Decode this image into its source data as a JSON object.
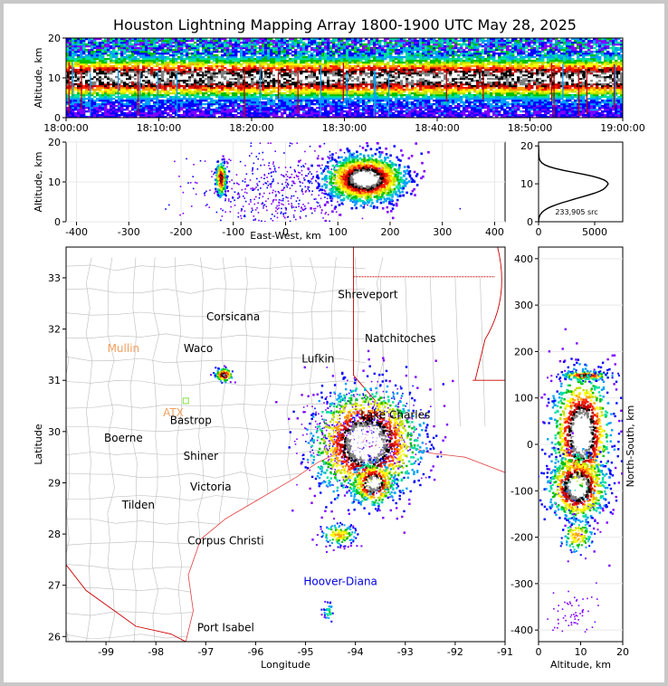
{
  "title": "Houston Lightning Mapping Array 1800-1900 UTC May 28, 2025",
  "source_count_label": "233,905 src",
  "colors": {
    "frame": "#c8c8c8",
    "state_border": "#cc0000",
    "county_border": "#bdbdbd",
    "coast": "#e04040",
    "density_scale": [
      "#7f00ff",
      "#0000ff",
      "#00a0ff",
      "#00e0a0",
      "#00c000",
      "#c0e000",
      "#ffff00",
      "#ffa000",
      "#ff2000",
      "#c00000",
      "#000000",
      "#808080",
      "#ffffff"
    ]
  },
  "chart_data": [
    {
      "id": "time-height",
      "type": "heatmap",
      "ylabel": "Altitude, km",
      "xlim": [
        "18:00:00",
        "19:00:00"
      ],
      "ylim": [
        0,
        20
      ],
      "xticks": [
        "18:00:00",
        "18:10:00",
        "18:20:00",
        "18:30:00",
        "18:40:00",
        "18:50:00",
        "19:00:00"
      ],
      "yticks": [
        0,
        10,
        20
      ],
      "core_altitude_km": 10
    },
    {
      "id": "ew-altitude",
      "type": "heatmap",
      "xlabel": "East-West, km",
      "ylabel": "Altitude, km",
      "xlim": [
        -420,
        420
      ],
      "ylim": [
        0,
        20
      ],
      "xticks": [
        -400,
        -300,
        -200,
        -100,
        0,
        100,
        200,
        300,
        400
      ],
      "yticks": [
        0,
        10,
        20
      ],
      "clusters": [
        {
          "x": -125,
          "y": 11,
          "density": "high"
        },
        {
          "x": 150,
          "y": 11,
          "density": "very high"
        }
      ]
    },
    {
      "id": "altitude-histogram",
      "type": "line",
      "xlim": [
        0,
        7500
      ],
      "ylim": [
        0,
        21
      ],
      "xticks": [
        0,
        5000
      ],
      "yticks": [
        0,
        10,
        20
      ],
      "x": [
        0,
        15,
        40,
        90,
        180,
        320,
        520,
        800,
        1150,
        1600,
        2100,
        2650,
        3200,
        3800,
        4400,
        4950,
        5400,
        5750,
        5950,
        6100,
        6200,
        6100,
        5850,
        5400,
        4800,
        4000,
        3150,
        2300,
        1550,
        950,
        550,
        300,
        160,
        80,
        40,
        20,
        8
      ],
      "y": [
        0,
        0.5,
        1,
        1.5,
        2,
        2.5,
        3,
        3.5,
        4,
        4.5,
        5,
        5.5,
        6,
        6.5,
        7,
        7.5,
        8,
        8.5,
        9,
        9.5,
        10,
        10.5,
        11,
        11.5,
        12,
        12.5,
        13,
        13.5,
        14,
        14.5,
        15,
        15.5,
        16,
        16.5,
        17,
        18,
        20
      ]
    },
    {
      "id": "plan-view",
      "type": "heatmap",
      "xlabel": "Longitude",
      "ylabel": "Latitude",
      "xlim": [
        -99.8,
        -91
      ],
      "ylim": [
        25.9,
        33.6
      ],
      "xticks": [
        -99,
        -98,
        -97,
        -96,
        -95,
        -94,
        -93,
        -92,
        -91
      ],
      "yticks": [
        26,
        27,
        28,
        29,
        30,
        31,
        32,
        33
      ],
      "places": [
        {
          "name": "Shreveport",
          "lon": -93.75,
          "lat": 32.6,
          "color": "#000000"
        },
        {
          "name": "Corsicana",
          "lon": -96.45,
          "lat": 32.17,
          "color": "#000000"
        },
        {
          "name": "Natchitoches",
          "lon": -93.1,
          "lat": 31.75,
          "color": "#000000"
        },
        {
          "name": "Mullin",
          "lon": -98.65,
          "lat": 31.55,
          "color": "#f0a060"
        },
        {
          "name": "Waco",
          "lon": -97.15,
          "lat": 31.55,
          "color": "#000000"
        },
        {
          "name": "Lufkin",
          "lon": -94.75,
          "lat": 31.35,
          "color": "#000000"
        },
        {
          "name": "ATX",
          "lon": -97.65,
          "lat": 30.3,
          "color": "#f0a060"
        },
        {
          "name": "Bastrop",
          "lon": -97.3,
          "lat": 30.15,
          "color": "#000000"
        },
        {
          "name": "Lake Charles",
          "lon": -93.2,
          "lat": 30.25,
          "color": "#000000"
        },
        {
          "name": "Boerne",
          "lon": -98.65,
          "lat": 29.8,
          "color": "#000000"
        },
        {
          "name": "Shiner",
          "lon": -97.1,
          "lat": 29.45,
          "color": "#000000"
        },
        {
          "name": "Victoria",
          "lon": -96.9,
          "lat": 28.85,
          "color": "#000000"
        },
        {
          "name": "Tilden",
          "lon": -98.35,
          "lat": 28.5,
          "color": "#000000"
        },
        {
          "name": "Corpus Christi",
          "lon": -96.6,
          "lat": 27.8,
          "color": "#000000"
        },
        {
          "name": "Hoover-Diana",
          "lon": -94.3,
          "lat": 27.0,
          "color": "#0000e0"
        },
        {
          "name": "Port Isabel",
          "lon": -96.6,
          "lat": 26.1,
          "color": "#000000"
        }
      ],
      "clusters": [
        {
          "lon": -93.8,
          "lat": 29.8,
          "density": "very high"
        },
        {
          "lon": -96.65,
          "lat": 31.12,
          "density": "high"
        },
        {
          "lon": -94.35,
          "lat": 28.0,
          "density": "moderate"
        },
        {
          "lon": -94.55,
          "lat": 26.5,
          "density": "low"
        }
      ]
    },
    {
      "id": "altitude-ns",
      "type": "heatmap",
      "xlabel": "Altitude, km",
      "ylabel": "North-South, km",
      "xlim": [
        0,
        20
      ],
      "ylim": [
        -425,
        425
      ],
      "xticks": [
        0,
        10,
        20
      ],
      "yticks": [
        -400,
        -300,
        -200,
        -100,
        0,
        100,
        200,
        300,
        400
      ],
      "clusters": [
        {
          "x": 11,
          "y": 150,
          "density": "high"
        },
        {
          "x": 10,
          "y": 25,
          "density": "very high"
        },
        {
          "x": 9,
          "y": -90,
          "density": "very high"
        },
        {
          "x": 9,
          "y": -195,
          "density": "moderate"
        }
      ]
    }
  ]
}
